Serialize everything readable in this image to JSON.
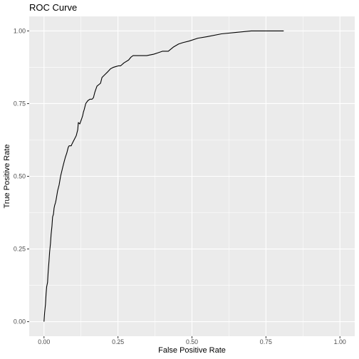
{
  "chart_data": {
    "type": "line",
    "title": "ROC Curve",
    "xlabel": "False Positive Rate",
    "ylabel": "True Positive Rate",
    "xlim": [
      -0.05,
      1.05
    ],
    "ylim": [
      -0.05,
      1.05
    ],
    "x_ticks": [
      0.0,
      0.25,
      0.5,
      0.75,
      1.0
    ],
    "x_tick_labels": [
      "0.00",
      "0.25",
      "0.50",
      "0.75",
      "1.00"
    ],
    "y_ticks": [
      0.0,
      0.25,
      0.5,
      0.75,
      1.0
    ],
    "y_tick_labels": [
      "0.00",
      "0.25",
      "0.50",
      "0.75",
      "1.00"
    ],
    "grid": true,
    "colors": {
      "panel": "#EBEBEB",
      "grid": "#FFFFFF",
      "line": "#000000",
      "tick": "#333333",
      "tick_label": "#4D4D4D"
    },
    "series": [
      {
        "x": [
          0.0,
          0.002,
          0.005,
          0.007,
          0.009,
          0.012,
          0.014,
          0.017,
          0.019,
          0.022,
          0.024,
          0.027,
          0.029,
          0.032,
          0.034,
          0.036,
          0.039,
          0.041,
          0.046,
          0.051,
          0.056,
          0.063,
          0.068,
          0.072,
          0.077,
          0.082,
          0.085,
          0.087,
          0.092,
          0.094,
          0.099,
          0.104,
          0.109,
          0.114,
          0.116,
          0.121,
          0.128,
          0.131,
          0.133,
          0.136,
          0.141,
          0.148,
          0.155,
          0.162,
          0.167,
          0.172,
          0.179,
          0.191,
          0.196,
          0.206,
          0.216,
          0.225,
          0.235,
          0.245,
          0.252,
          0.259,
          0.27,
          0.286,
          0.294,
          0.301,
          0.311,
          0.323,
          0.335,
          0.347,
          0.371,
          0.386,
          0.4,
          0.42,
          0.438,
          0.455,
          0.47,
          0.49,
          0.52,
          0.55,
          0.6,
          0.65,
          0.7,
          0.72,
          0.75,
          0.78,
          0.81
        ],
        "y": [
          0.0,
          0.03,
          0.06,
          0.095,
          0.12,
          0.135,
          0.17,
          0.21,
          0.24,
          0.27,
          0.3,
          0.33,
          0.36,
          0.37,
          0.39,
          0.4,
          0.41,
          0.42,
          0.45,
          0.47,
          0.5,
          0.53,
          0.55,
          0.565,
          0.58,
          0.6,
          0.605,
          0.605,
          0.605,
          0.61,
          0.62,
          0.63,
          0.64,
          0.66,
          0.685,
          0.68,
          0.7,
          0.71,
          0.72,
          0.73,
          0.75,
          0.76,
          0.765,
          0.765,
          0.77,
          0.79,
          0.81,
          0.82,
          0.84,
          0.85,
          0.86,
          0.87,
          0.875,
          0.878,
          0.88,
          0.88,
          0.89,
          0.9,
          0.91,
          0.915,
          0.915,
          0.915,
          0.915,
          0.915,
          0.92,
          0.925,
          0.93,
          0.93,
          0.945,
          0.955,
          0.96,
          0.965,
          0.975,
          0.98,
          0.99,
          0.995,
          1.0,
          1.0,
          1.0,
          1.0,
          1.0
        ]
      }
    ]
  }
}
